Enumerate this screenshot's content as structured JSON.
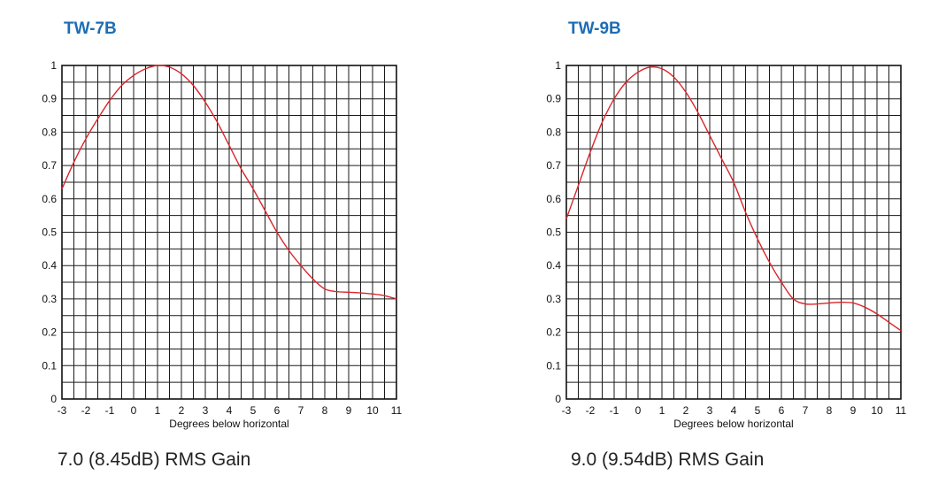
{
  "chart_data": [
    {
      "type": "line",
      "title": "TW-7B",
      "xlabel": "Degrees below horizontal",
      "ylabel": "",
      "caption": "7.0 (8.45dB) RMS Gain",
      "xlim": [
        -3,
        11
      ],
      "ylim": [
        0,
        1
      ],
      "x_ticks": [
        "-3",
        "-2",
        "-1",
        "0",
        "1",
        "2",
        "3",
        "4",
        "5",
        "6",
        "7",
        "8",
        "9",
        "10",
        "11"
      ],
      "y_ticks": [
        "0",
        "0.1",
        "0.2",
        "0.3",
        "0.4",
        "0.5",
        "0.6",
        "0.7",
        "0.8",
        "0.9",
        "1"
      ],
      "grid": true,
      "line_color": "#d9252b",
      "series": [
        {
          "x": [
            -3,
            -2.5,
            -2,
            -1.5,
            -1,
            -0.5,
            0,
            0.5,
            1,
            1.5,
            2,
            2.5,
            3,
            3.5,
            4,
            4.5,
            5,
            5.5,
            6,
            6.5,
            7,
            7.5,
            8,
            8.5,
            9,
            9.5,
            10,
            10.5,
            11
          ],
          "y": [
            0.63,
            0.71,
            0.78,
            0.84,
            0.895,
            0.94,
            0.97,
            0.99,
            1.0,
            0.995,
            0.975,
            0.94,
            0.89,
            0.83,
            0.76,
            0.69,
            0.63,
            0.565,
            0.5,
            0.445,
            0.4,
            0.36,
            0.33,
            0.322,
            0.32,
            0.318,
            0.315,
            0.31,
            0.3
          ]
        }
      ]
    },
    {
      "type": "line",
      "title": "TW-9B",
      "xlabel": "Degrees below horizontal",
      "ylabel": "",
      "caption": "9.0 (9.54dB) RMS Gain",
      "xlim": [
        -3,
        11
      ],
      "ylim": [
        0,
        1
      ],
      "x_ticks": [
        "-3",
        "-2",
        "-1",
        "0",
        "1",
        "2",
        "3",
        "4",
        "5",
        "6",
        "7",
        "8",
        "9",
        "10",
        "11"
      ],
      "y_ticks": [
        "0",
        "0.1",
        "0.2",
        "0.3",
        "0.4",
        "0.5",
        "0.6",
        "0.7",
        "0.8",
        "0.9",
        "1"
      ],
      "grid": true,
      "line_color": "#d9252b",
      "series": [
        {
          "x": [
            -3,
            -2.5,
            -2,
            -1.5,
            -1,
            -0.5,
            0,
            0.5,
            1,
            1.5,
            2,
            2.5,
            3,
            3.5,
            4,
            4.5,
            5,
            5.5,
            6,
            6.5,
            7,
            7.5,
            8,
            8.5,
            9,
            9.5,
            10,
            10.5,
            11
          ],
          "y": [
            0.54,
            0.64,
            0.74,
            0.83,
            0.9,
            0.95,
            0.98,
            0.995,
            0.99,
            0.965,
            0.92,
            0.86,
            0.79,
            0.72,
            0.65,
            0.56,
            0.48,
            0.41,
            0.35,
            0.3,
            0.285,
            0.285,
            0.288,
            0.29,
            0.288,
            0.275,
            0.255,
            0.23,
            0.205
          ]
        }
      ]
    }
  ]
}
